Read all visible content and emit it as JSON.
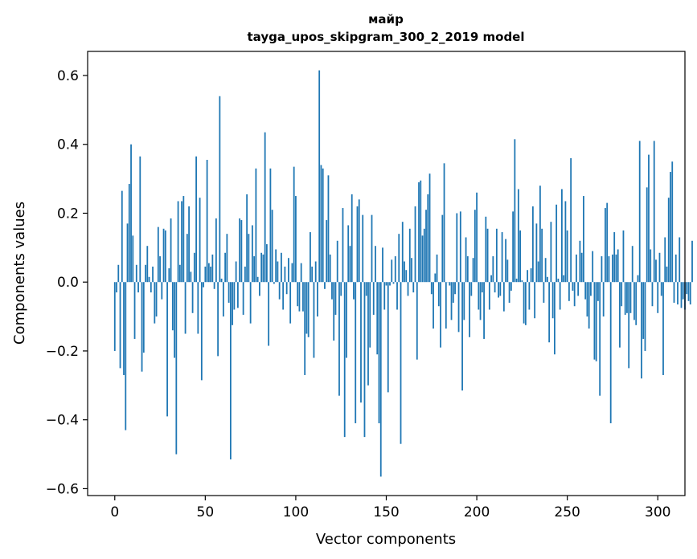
{
  "chart_data": {
    "type": "bar",
    "title_line1": "майр",
    "title_line2": "tayga_upos_skipgram_300_2_2019 model",
    "xlabel": "Vector components",
    "ylabel": "Components values",
    "xlim": [
      -15,
      315
    ],
    "ylim": [
      -0.62,
      0.67
    ],
    "xticks": [
      0,
      50,
      100,
      150,
      200,
      250,
      300
    ],
    "xtick_labels": [
      "0",
      "50",
      "100",
      "150",
      "200",
      "250",
      "300"
    ],
    "yticks": [
      -0.6,
      -0.4,
      -0.2,
      0.0,
      0.2,
      0.4,
      0.6
    ],
    "ytick_labels": [
      "−0.6",
      "−0.4",
      "−0.2",
      "0.0",
      "0.2",
      "0.4",
      "0.6"
    ],
    "bar_color": "#1f77b4",
    "values": [
      -0.2,
      -0.03,
      0.05,
      -0.25,
      0.265,
      -0.27,
      -0.43,
      0.17,
      0.285,
      0.4,
      0.135,
      -0.165,
      0.05,
      -0.03,
      0.365,
      -0.26,
      -0.205,
      0.05,
      0.105,
      0.015,
      -0.03,
      0.045,
      -0.12,
      -0.1,
      0.16,
      0.075,
      -0.05,
      0.155,
      0.15,
      -0.39,
      0.04,
      0.185,
      -0.14,
      -0.22,
      -0.5,
      0.235,
      0.05,
      0.235,
      0.25,
      -0.15,
      0.14,
      0.22,
      0.03,
      -0.09,
      0.085,
      0.365,
      -0.15,
      0.245,
      -0.285,
      -0.015,
      0.045,
      0.355,
      0.055,
      0.045,
      0.08,
      -0.02,
      0.185,
      -0.215,
      0.54,
      0.01,
      -0.1,
      0.085,
      0.14,
      -0.06,
      -0.515,
      -0.125,
      -0.08,
      0.06,
      -0.075,
      0.185,
      0.18,
      -0.095,
      0.045,
      0.255,
      0.14,
      -0.12,
      0.165,
      0.075,
      0.33,
      0.015,
      -0.04,
      0.085,
      0.08,
      0.435,
      0.11,
      -0.185,
      0.33,
      0.21,
      -0.005,
      0.095,
      0.06,
      -0.05,
      0.085,
      -0.08,
      0.045,
      -0.035,
      0.07,
      -0.12,
      0.055,
      0.335,
      0.25,
      -0.07,
      -0.085,
      0.055,
      -0.085,
      -0.27,
      -0.15,
      -0.16,
      0.145,
      0.045,
      -0.22,
      0.06,
      -0.1,
      0.615,
      0.34,
      0.33,
      -0.02,
      0.18,
      0.31,
      0.08,
      -0.05,
      -0.17,
      -0.095,
      0.12,
      -0.33,
      -0.04,
      0.215,
      -0.45,
      -0.22,
      0.165,
      0.105,
      0.255,
      -0.05,
      -0.41,
      0.22,
      0.24,
      -0.35,
      0.195,
      -0.45,
      -0.04,
      -0.3,
      -0.19,
      0.195,
      -0.095,
      0.105,
      -0.21,
      -0.41,
      -0.565,
      0.1,
      -0.08,
      -0.01,
      -0.32,
      -0.01,
      0.065,
      -0.005,
      0.075,
      -0.08,
      0.14,
      -0.47,
      0.175,
      0.06,
      0.035,
      -0.04,
      0.155,
      0.07,
      -0.03,
      0.22,
      -0.225,
      0.29,
      0.295,
      0.135,
      0.155,
      0.21,
      0.255,
      0.315,
      -0.035,
      -0.135,
      0.025,
      0.08,
      -0.07,
      -0.19,
      0.195,
      0.345,
      -0.135,
      0.0,
      -0.01,
      -0.11,
      -0.06,
      -0.035,
      0.2,
      -0.145,
      0.205,
      -0.315,
      -0.11,
      0.13,
      0.075,
      -0.16,
      -0.04,
      0.07,
      0.21,
      0.26,
      -0.08,
      -0.11,
      -0.03,
      -0.165,
      0.19,
      0.155,
      -0.08,
      0.02,
      0.075,
      -0.03,
      0.155,
      -0.045,
      -0.04,
      0.145,
      -0.085,
      0.125,
      0.065,
      -0.06,
      -0.025,
      0.205,
      0.415,
      0.01,
      0.27,
      0.15,
      0.005,
      -0.12,
      -0.125,
      0.035,
      -0.08,
      0.04,
      0.22,
      -0.105,
      0.17,
      0.06,
      0.28,
      0.155,
      -0.06,
      0.07,
      0.015,
      -0.175,
      0.175,
      -0.105,
      -0.21,
      0.225,
      0.01,
      -0.08,
      0.27,
      0.02,
      0.235,
      0.15,
      -0.055,
      0.36,
      -0.025,
      -0.07,
      0.08,
      -0.04,
      0.12,
      0.085,
      0.25,
      -0.05,
      -0.1,
      -0.135,
      -0.04,
      0.09,
      -0.225,
      -0.23,
      -0.055,
      -0.33,
      0.075,
      -0.1,
      0.215,
      0.23,
      0.075,
      -0.41,
      0.08,
      0.145,
      0.08,
      0.095,
      -0.19,
      -0.07,
      0.15,
      -0.095,
      -0.09,
      -0.25,
      -0.09,
      0.105,
      -0.11,
      -0.125,
      0.02,
      0.41,
      -0.28,
      -0.165,
      -0.2,
      0.275,
      0.37,
      0.095,
      -0.07,
      0.41,
      0.065,
      -0.09,
      0.085,
      -0.04,
      -0.27,
      0.13,
      0.045,
      0.245,
      0.32,
      0.35,
      -0.06,
      0.08,
      -0.065,
      0.13,
      -0.075,
      -0.05,
      -0.08,
      -0.035,
      -0.055,
      -0.065,
      0.12
    ]
  }
}
